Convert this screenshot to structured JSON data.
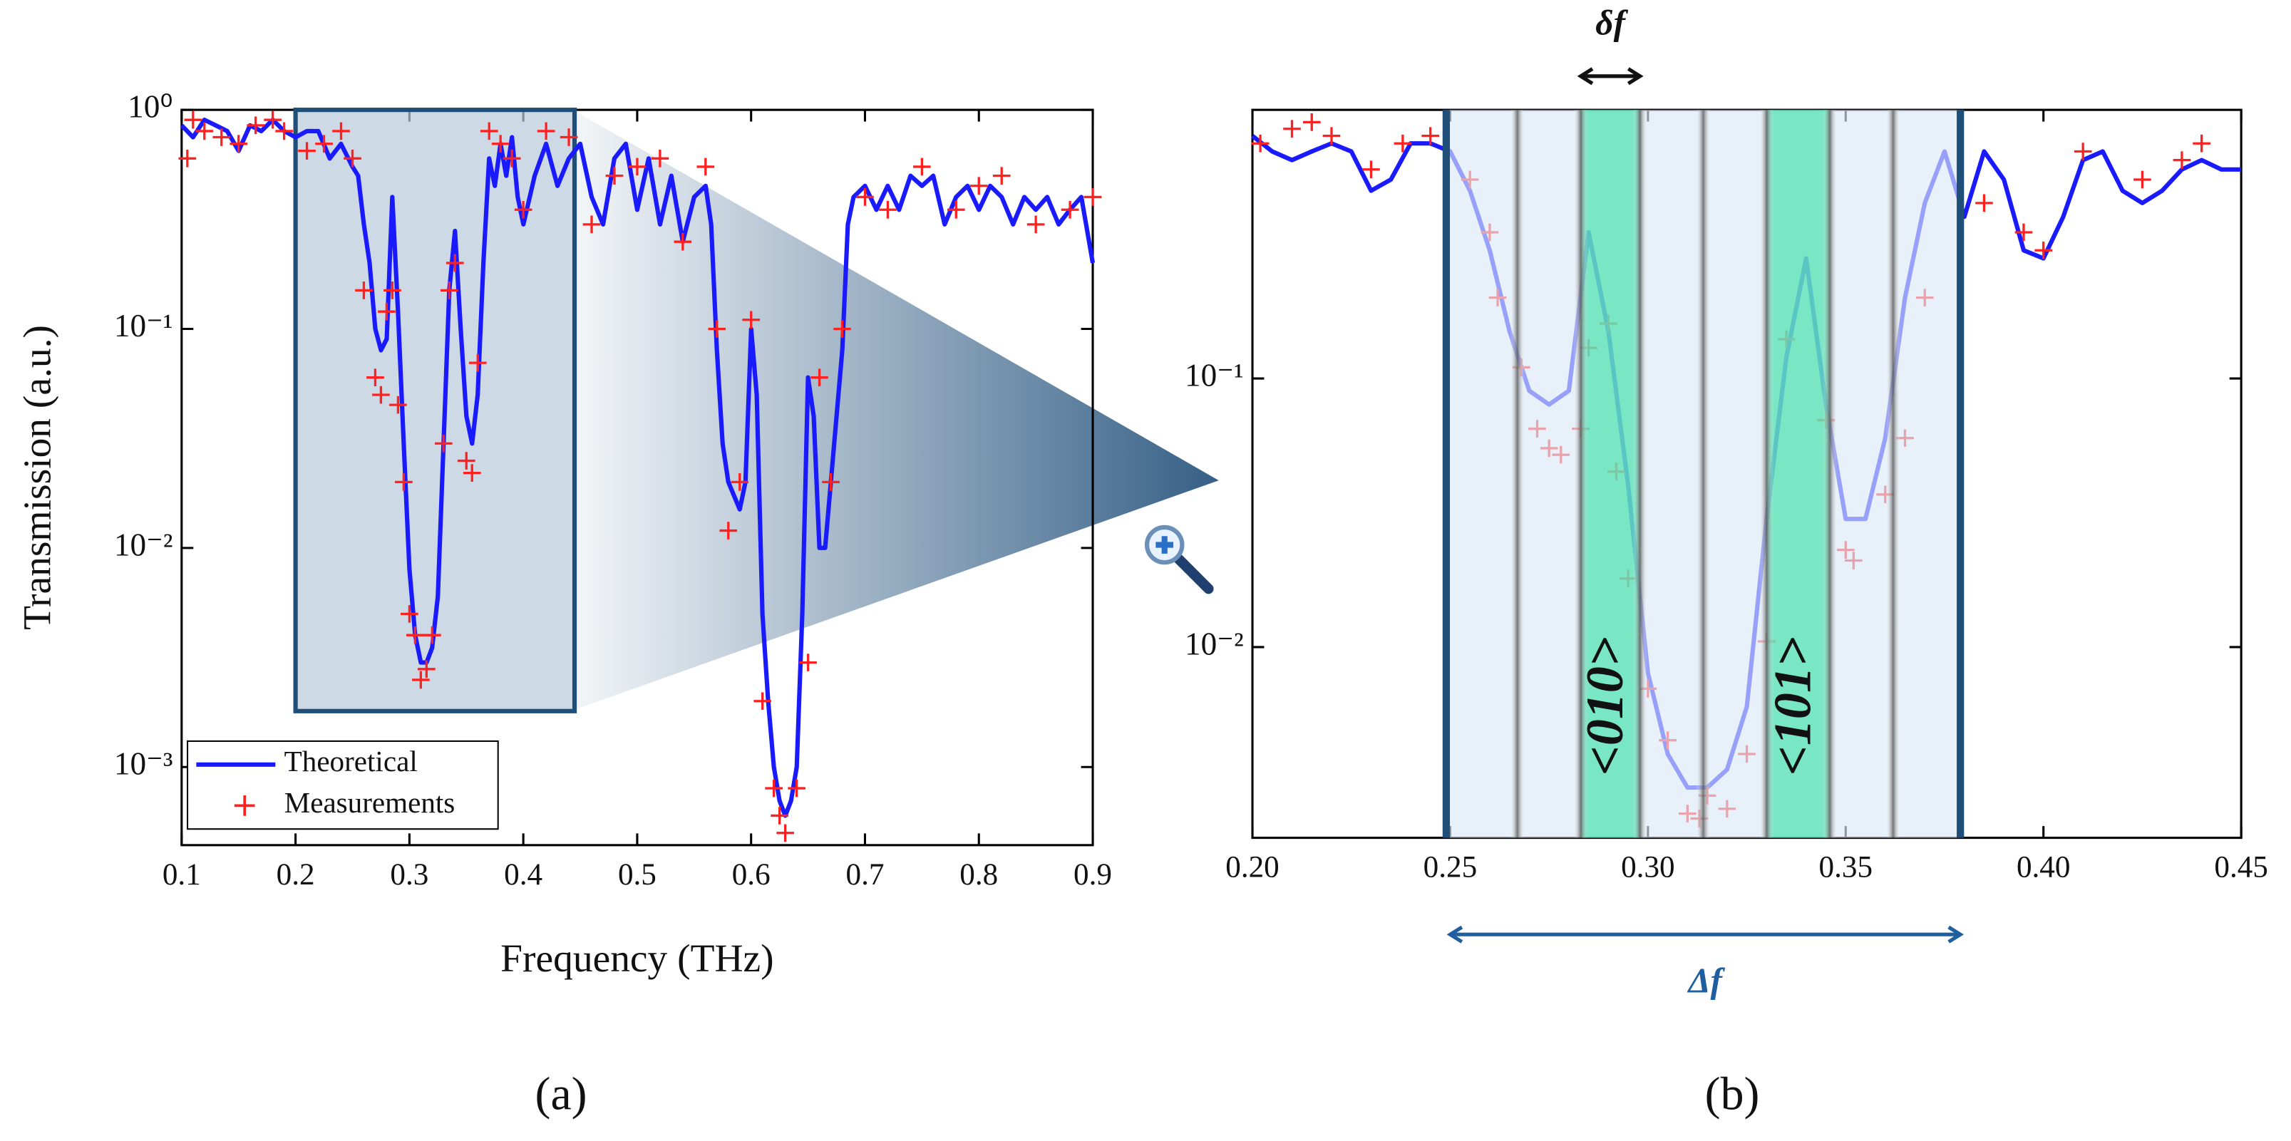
{
  "chart_data": [
    {
      "type": "line",
      "y_label": "Transmission (a.u.)",
      "x_label": "Frequency (THz)",
      "panel_label": "(a)",
      "log_y": true,
      "xlim": [
        0.1,
        0.9
      ],
      "ylim": [
        0.00044,
        1
      ],
      "xticks": [
        0.1,
        0.2,
        0.3,
        0.4,
        0.5,
        0.6,
        0.7,
        0.8,
        0.9
      ],
      "yticks": [
        {
          "value": 0.001,
          "label": "10⁻³"
        },
        {
          "value": 0.01,
          "label": "10⁻²"
        },
        {
          "value": 0.1,
          "label": "10⁻¹"
        },
        {
          "value": 1,
          "label": "10⁰"
        }
      ],
      "zoom_box": {
        "x": [
          0.2,
          0.445
        ],
        "y": [
          0.0018,
          1
        ]
      },
      "series": [
        {
          "name": "Theoretical",
          "color": "#1a1aff",
          "x": [
            0.1,
            0.11,
            0.12,
            0.13,
            0.14,
            0.15,
            0.16,
            0.17,
            0.18,
            0.19,
            0.2,
            0.21,
            0.22,
            0.23,
            0.24,
            0.25,
            0.255,
            0.26,
            0.265,
            0.27,
            0.275,
            0.28,
            0.285,
            0.29,
            0.295,
            0.3,
            0.305,
            0.31,
            0.315,
            0.32,
            0.325,
            0.33,
            0.335,
            0.34,
            0.345,
            0.35,
            0.355,
            0.36,
            0.365,
            0.37,
            0.375,
            0.38,
            0.385,
            0.39,
            0.395,
            0.4,
            0.41,
            0.42,
            0.43,
            0.44,
            0.45,
            0.46,
            0.47,
            0.48,
            0.49,
            0.5,
            0.51,
            0.52,
            0.53,
            0.54,
            0.55,
            0.56,
            0.565,
            0.57,
            0.575,
            0.58,
            0.59,
            0.595,
            0.6,
            0.605,
            0.61,
            0.615,
            0.62,
            0.625,
            0.63,
            0.635,
            0.64,
            0.645,
            0.65,
            0.655,
            0.66,
            0.665,
            0.67,
            0.68,
            0.685,
            0.69,
            0.7,
            0.71,
            0.72,
            0.73,
            0.74,
            0.75,
            0.76,
            0.77,
            0.78,
            0.79,
            0.8,
            0.81,
            0.82,
            0.83,
            0.84,
            0.85,
            0.86,
            0.87,
            0.88,
            0.89,
            0.9
          ],
          "values": [
            0.85,
            0.75,
            0.9,
            0.85,
            0.8,
            0.65,
            0.85,
            0.8,
            0.9,
            0.8,
            0.75,
            0.8,
            0.8,
            0.6,
            0.7,
            0.55,
            0.5,
            0.3,
            0.2,
            0.1,
            0.08,
            0.09,
            0.4,
            0.12,
            0.03,
            0.008,
            0.004,
            0.003,
            0.003,
            0.0035,
            0.006,
            0.03,
            0.15,
            0.28,
            0.1,
            0.04,
            0.03,
            0.05,
            0.2,
            0.6,
            0.45,
            0.7,
            0.5,
            0.75,
            0.4,
            0.3,
            0.5,
            0.7,
            0.45,
            0.6,
            0.7,
            0.4,
            0.3,
            0.6,
            0.7,
            0.35,
            0.6,
            0.3,
            0.5,
            0.25,
            0.4,
            0.45,
            0.3,
            0.08,
            0.03,
            0.02,
            0.015,
            0.02,
            0.1,
            0.05,
            0.005,
            0.002,
            0.001,
            0.0007,
            0.0006,
            0.0007,
            0.001,
            0.005,
            0.06,
            0.04,
            0.01,
            0.01,
            0.02,
            0.08,
            0.3,
            0.4,
            0.45,
            0.35,
            0.45,
            0.35,
            0.5,
            0.45,
            0.5,
            0.3,
            0.4,
            0.45,
            0.35,
            0.45,
            0.4,
            0.3,
            0.4,
            0.35,
            0.4,
            0.3,
            0.35,
            0.4,
            0.2
          ]
        },
        {
          "name": "Measurements",
          "color": "#ff2020",
          "marker": "+",
          "x": [
            0.105,
            0.11,
            0.12,
            0.135,
            0.15,
            0.165,
            0.18,
            0.19,
            0.21,
            0.225,
            0.24,
            0.25,
            0.26,
            0.27,
            0.275,
            0.28,
            0.285,
            0.29,
            0.295,
            0.3,
            0.305,
            0.31,
            0.315,
            0.32,
            0.33,
            0.335,
            0.34,
            0.35,
            0.355,
            0.36,
            0.37,
            0.38,
            0.39,
            0.4,
            0.42,
            0.44,
            0.46,
            0.48,
            0.5,
            0.52,
            0.54,
            0.56,
            0.57,
            0.58,
            0.59,
            0.6,
            0.61,
            0.62,
            0.625,
            0.63,
            0.64,
            0.65,
            0.66,
            0.67,
            0.68,
            0.7,
            0.72,
            0.75,
            0.78,
            0.8,
            0.82,
            0.85,
            0.88,
            0.9
          ],
          "values": [
            0.6,
            0.9,
            0.8,
            0.75,
            0.7,
            0.85,
            0.9,
            0.8,
            0.65,
            0.7,
            0.8,
            0.6,
            0.15,
            0.06,
            0.05,
            0.12,
            0.15,
            0.045,
            0.02,
            0.005,
            0.004,
            0.0025,
            0.0028,
            0.004,
            0.03,
            0.15,
            0.2,
            0.025,
            0.022,
            0.07,
            0.8,
            0.7,
            0.6,
            0.35,
            0.8,
            0.75,
            0.3,
            0.5,
            0.55,
            0.6,
            0.25,
            0.55,
            0.1,
            0.012,
            0.02,
            0.11,
            0.002,
            0.0008,
            0.0006,
            0.0005,
            0.0008,
            0.003,
            0.06,
            0.02,
            0.1,
            0.4,
            0.35,
            0.55,
            0.35,
            0.45,
            0.5,
            0.3,
            0.35,
            0.4
          ]
        }
      ]
    },
    {
      "type": "line",
      "panel_label": "(b)",
      "log_y": true,
      "xlim": [
        0.2,
        0.45
      ],
      "ylim": [
        0.00195,
        1
      ],
      "xticks": [
        {
          "value": 0.2,
          "label": "0.20"
        },
        {
          "value": 0.25,
          "label": "0.25"
        },
        {
          "value": 0.3,
          "label": "0.30"
        },
        {
          "value": 0.35,
          "label": "0.35"
        },
        {
          "value": 0.4,
          "label": "0.40"
        },
        {
          "value": 0.45,
          "label": "0.45"
        }
      ],
      "yticks": [
        {
          "value": 0.01,
          "label": "10⁻²"
        },
        {
          "value": 0.1,
          "label": "10⁻¹"
        }
      ],
      "band_edges": [
        0.249,
        0.267,
        0.283,
        0.298,
        0.314,
        0.33,
        0.346,
        0.362,
        0.379
      ],
      "highlight_ranges": [
        [
          0.283,
          0.298
        ],
        [
          0.33,
          0.346
        ]
      ],
      "band_labels": [
        {
          "text": "<010>",
          "x": 0.2905
        },
        {
          "text": "<101>",
          "x": 0.338
        }
      ],
      "annotations": [
        {
          "text": "δf",
          "x": [
            0.283,
            0.298
          ]
        },
        {
          "text": "Δf",
          "x": [
            0.25,
            0.379
          ]
        }
      ],
      "series": [
        {
          "color": "#1a1aff",
          "x": [
            0.2,
            0.205,
            0.21,
            0.215,
            0.22,
            0.225,
            0.23,
            0.235,
            0.24,
            0.245,
            0.25,
            0.255,
            0.26,
            0.265,
            0.27,
            0.275,
            0.28,
            0.285,
            0.29,
            0.295,
            0.3,
            0.305,
            0.31,
            0.315,
            0.32,
            0.325,
            0.33,
            0.335,
            0.34,
            0.345,
            0.35,
            0.355,
            0.36,
            0.365,
            0.37,
            0.375,
            0.38,
            0.385,
            0.39,
            0.395,
            0.4,
            0.405,
            0.41,
            0.415,
            0.42,
            0.425,
            0.43,
            0.435,
            0.44,
            0.445,
            0.45
          ],
          "values": [
            0.8,
            0.7,
            0.65,
            0.7,
            0.75,
            0.7,
            0.5,
            0.55,
            0.75,
            0.75,
            0.7,
            0.5,
            0.3,
            0.15,
            0.09,
            0.08,
            0.09,
            0.35,
            0.15,
            0.04,
            0.008,
            0.004,
            0.003,
            0.003,
            0.0035,
            0.006,
            0.03,
            0.12,
            0.28,
            0.08,
            0.03,
            0.03,
            0.06,
            0.2,
            0.45,
            0.7,
            0.4,
            0.7,
            0.55,
            0.3,
            0.28,
            0.4,
            0.65,
            0.7,
            0.5,
            0.45,
            0.5,
            0.6,
            0.65,
            0.6,
            0.6
          ]
        },
        {
          "color": "#ff2020",
          "marker": "+",
          "x": [
            0.202,
            0.21,
            0.215,
            0.22,
            0.23,
            0.238,
            0.245,
            0.255,
            0.26,
            0.262,
            0.268,
            0.272,
            0.275,
            0.278,
            0.283,
            0.285,
            0.29,
            0.292,
            0.295,
            0.3,
            0.305,
            0.31,
            0.313,
            0.315,
            0.32,
            0.325,
            0.33,
            0.335,
            0.345,
            0.35,
            0.352,
            0.36,
            0.365,
            0.37,
            0.385,
            0.395,
            0.4,
            0.41,
            0.425,
            0.435,
            0.44
          ],
          "values": [
            0.75,
            0.85,
            0.9,
            0.8,
            0.6,
            0.75,
            0.8,
            0.55,
            0.35,
            0.2,
            0.11,
            0.065,
            0.055,
            0.052,
            0.065,
            0.13,
            0.16,
            0.045,
            0.018,
            0.007,
            0.0045,
            0.0024,
            0.0023,
            0.0028,
            0.0025,
            0.004,
            0.0105,
            0.14,
            0.07,
            0.023,
            0.021,
            0.037,
            0.06,
            0.2,
            0.45,
            0.35,
            0.3,
            0.7,
            0.55,
            0.65,
            0.75
          ]
        }
      ]
    }
  ]
}
